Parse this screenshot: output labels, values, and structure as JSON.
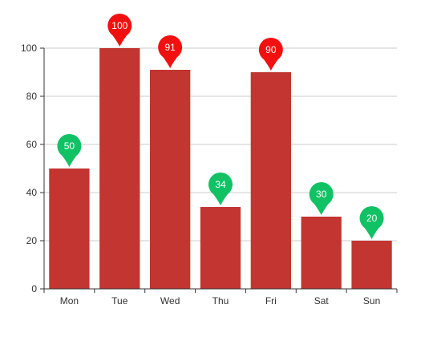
{
  "chart_data": {
    "type": "bar",
    "title": "",
    "xlabel": "",
    "ylabel": "",
    "categories": [
      "Mon",
      "Tue",
      "Wed",
      "Thu",
      "Fri",
      "Sat",
      "Sun"
    ],
    "values": [
      50,
      100,
      91,
      34,
      90,
      30,
      20
    ],
    "ylim": [
      0,
      100
    ],
    "yticks": [
      0,
      20,
      40,
      60,
      80,
      100
    ],
    "grid": true,
    "legend": "none",
    "colors": {
      "bar": "#c23531",
      "pin_high": "#f31010",
      "pin_low": "#11c265",
      "grid": "#cccccc",
      "axis": "#333333",
      "tick_label": "#333333"
    },
    "annotations": {
      "pin_rule": "values >= 90 shown with red pin, others with green pin"
    }
  }
}
